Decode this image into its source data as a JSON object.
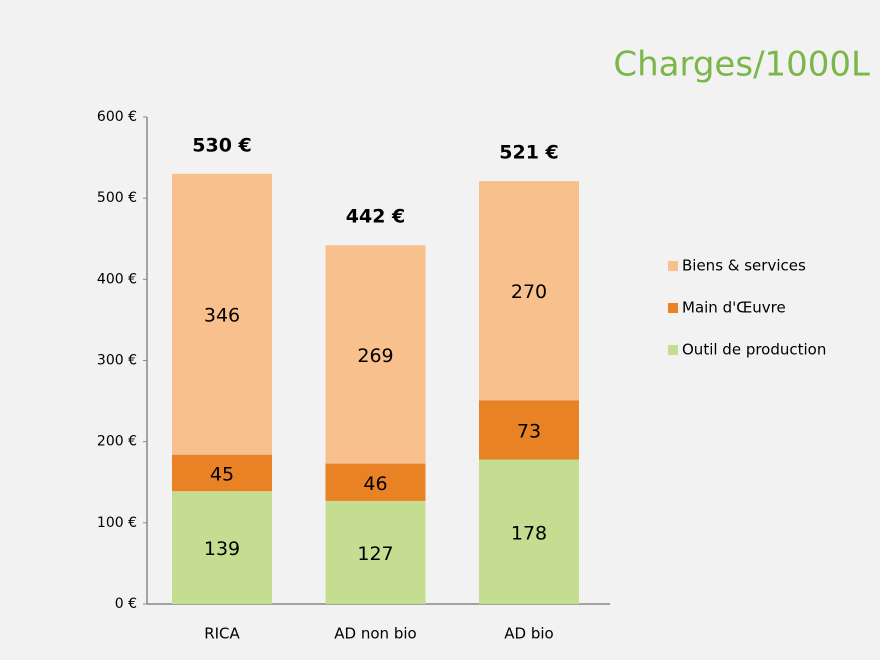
{
  "chart_data": {
    "type": "stacked_bar",
    "title": "Charges/1000L",
    "categories": [
      "RICA",
      "AD non bio",
      "AD bio"
    ],
    "series": [
      {
        "name": "Outil de production",
        "color": "#c5dd91",
        "values": [
          139,
          127,
          178
        ]
      },
      {
        "name": "Main d'Œuvre",
        "color": "#e98125",
        "values": [
          45,
          46,
          73
        ]
      },
      {
        "name": "Biens & services",
        "color": "#f8c08c",
        "values": [
          346,
          269,
          270
        ]
      }
    ],
    "annotations": [
      "530 €",
      "442 €",
      "521 €"
    ],
    "ylim": [
      0,
      600
    ],
    "yticks": [
      {
        "value": 0,
        "label": "0 €"
      },
      {
        "value": 100,
        "label": "100 €"
      },
      {
        "value": 200,
        "label": "200 €"
      },
      {
        "value": 300,
        "label": "300 €"
      },
      {
        "value": 400,
        "label": "400 €"
      },
      {
        "value": 500,
        "label": "500 €"
      },
      {
        "value": 600,
        "label": "600 €"
      }
    ],
    "legend": "right"
  }
}
